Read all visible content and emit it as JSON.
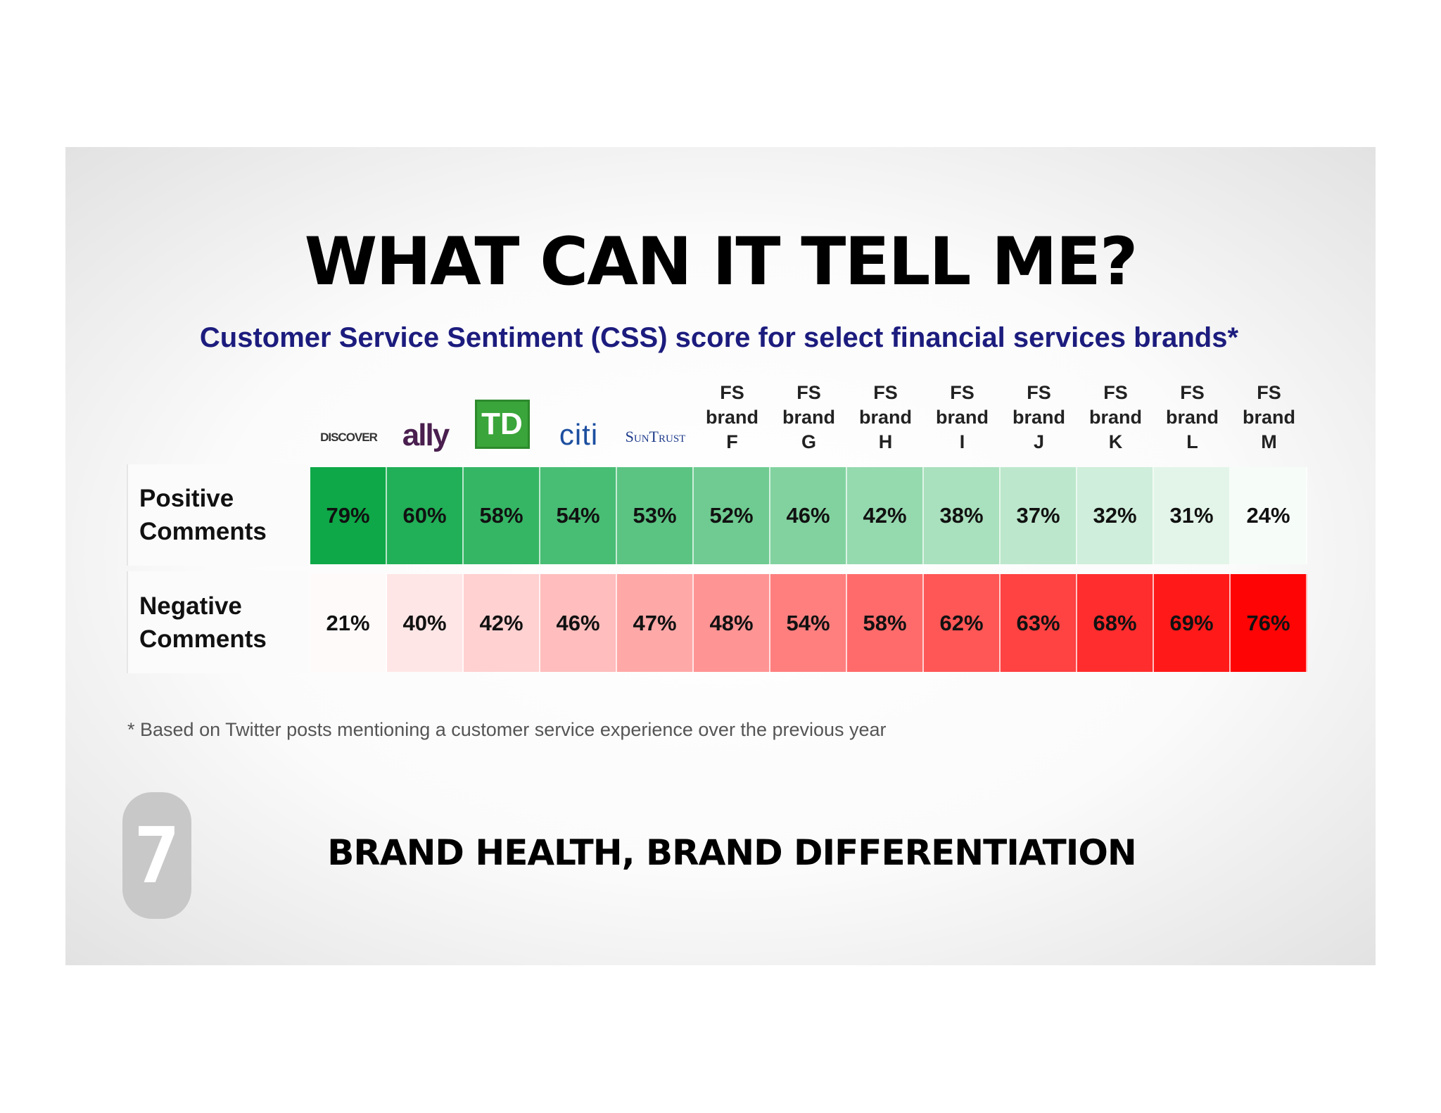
{
  "title": "WHAT CAN IT TELL ME?",
  "subtitle": "Customer Service Sentiment (CSS) score for select financial services brands*",
  "table": {
    "columns": [
      "DISCOVER",
      "ally",
      "TD",
      "citi",
      "SunTrust",
      "FS brand F",
      "FS brand G",
      "FS brand H",
      "FS brand I",
      "FS brand J",
      "FS brand K",
      "FS brand L",
      "FS brand M"
    ],
    "rows": [
      {
        "label": "Positive Comments",
        "cells": [
          "79%",
          "60%",
          "58%",
          "54%",
          "53%",
          "52%",
          "46%",
          "42%",
          "38%",
          "37%",
          "32%",
          "31%",
          "24%"
        ]
      },
      {
        "label": "Negative Comments",
        "cells": [
          "21%",
          "40%",
          "42%",
          "46%",
          "47%",
          "48%",
          "54%",
          "58%",
          "62%",
          "63%",
          "68%",
          "69%",
          "76%"
        ]
      }
    ]
  },
  "footnote": "* Based on Twitter posts mentioning a customer service experience over the previous year",
  "badge": "7",
  "footer": "BRAND HEALTH, BRAND DIFFERENTIATION"
}
